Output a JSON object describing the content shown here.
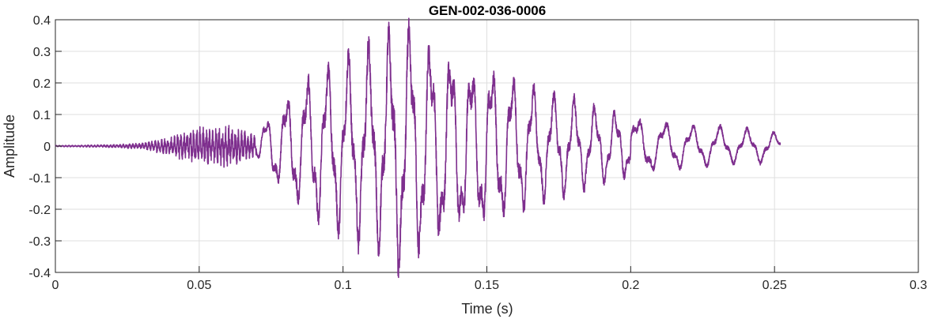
{
  "chart_data": {
    "type": "line",
    "title": "GEN-002-036-0006",
    "xlabel": "Time (s)",
    "ylabel": "Amplitude",
    "xlim": [
      0,
      0.3
    ],
    "ylim": [
      -0.4,
      0.4
    ],
    "xticks": [
      0,
      0.05,
      0.1,
      0.15,
      0.2,
      0.25,
      0.3
    ],
    "xtick_labels": [
      "0",
      "0.05",
      "0.1",
      "0.15",
      "0.2",
      "0.25",
      "0.3"
    ],
    "yticks": [
      -0.4,
      -0.3,
      -0.2,
      -0.1,
      0,
      0.1,
      0.2,
      0.3,
      0.4
    ],
    "ytick_labels": [
      "-0.4",
      "-0.3",
      "-0.2",
      "-0.1",
      "0",
      "0.1",
      "0.2",
      "0.3",
      "0.4"
    ],
    "grid": true,
    "line_color": "#7E2F8E",
    "series": [
      {
        "x": [
          0,
          0.01,
          0.02,
          0.03,
          0.035,
          0.04,
          0.045,
          0.05,
          0.055,
          0.06,
          0.065,
          0.07,
          0.075,
          0.08,
          0.085,
          0.09,
          0.095,
          0.1,
          0.105,
          0.11,
          0.115,
          0.12,
          0.125,
          0.13,
          0.135,
          0.14,
          0.145,
          0.15,
          0.155,
          0.16,
          0.165,
          0.17,
          0.175,
          0.18,
          0.185,
          0.19,
          0.195,
          0.2,
          0.205,
          0.21,
          0.215,
          0.22,
          0.225,
          0.23,
          0.235,
          0.24,
          0.245,
          0.25,
          0.252
        ],
        "envelope": [
          0.002,
          0.003,
          0.005,
          0.01,
          0.02,
          0.03,
          0.05,
          0.065,
          0.06,
          0.07,
          0.05,
          0.04,
          0.1,
          0.14,
          0.18,
          0.22,
          0.24,
          0.26,
          0.28,
          0.3,
          0.32,
          0.38,
          0.33,
          0.3,
          0.28,
          0.26,
          0.24,
          0.24,
          0.22,
          0.2,
          0.18,
          0.16,
          0.15,
          0.14,
          0.12,
          0.11,
          0.1,
          0.09,
          0.08,
          0.07,
          0.07,
          0.06,
          0.06,
          0.06,
          0.05,
          0.05,
          0.05,
          0.04,
          0.03
        ]
      }
    ]
  }
}
